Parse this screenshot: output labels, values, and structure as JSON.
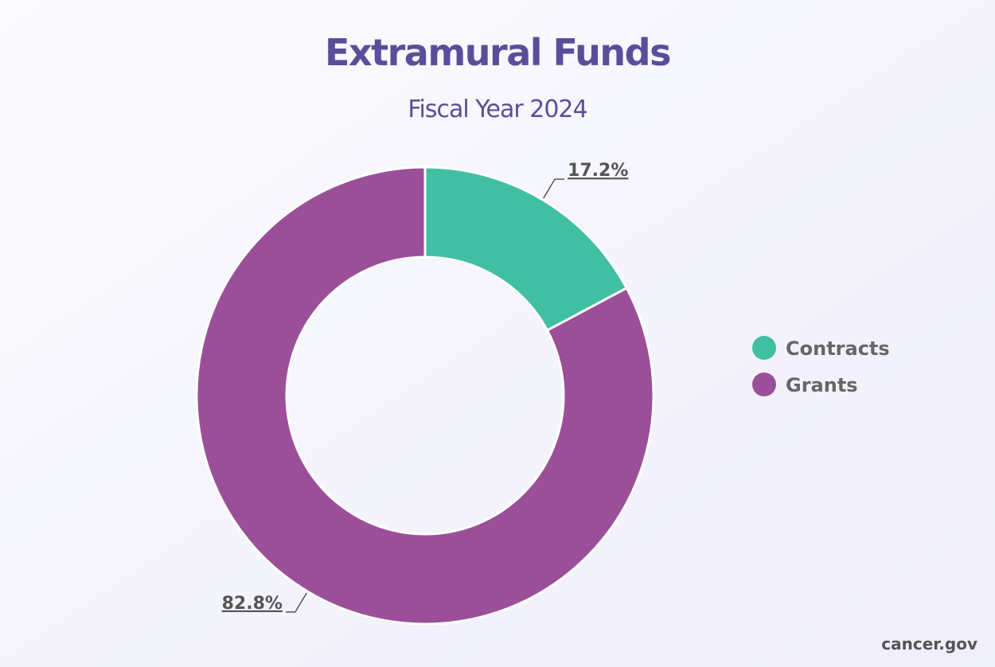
{
  "chart_data": {
    "type": "pie",
    "donut": true,
    "title": "Extramural Funds",
    "subtitle": "Fiscal Year 2024",
    "categories": [
      "Contracts",
      "Grants"
    ],
    "values": [
      17.2,
      82.8
    ],
    "value_labels": [
      "17.2%",
      "82.8%"
    ],
    "colors": [
      "#41bfa3",
      "#9b4f99"
    ],
    "legend": "right",
    "source": "cancer.gov"
  }
}
